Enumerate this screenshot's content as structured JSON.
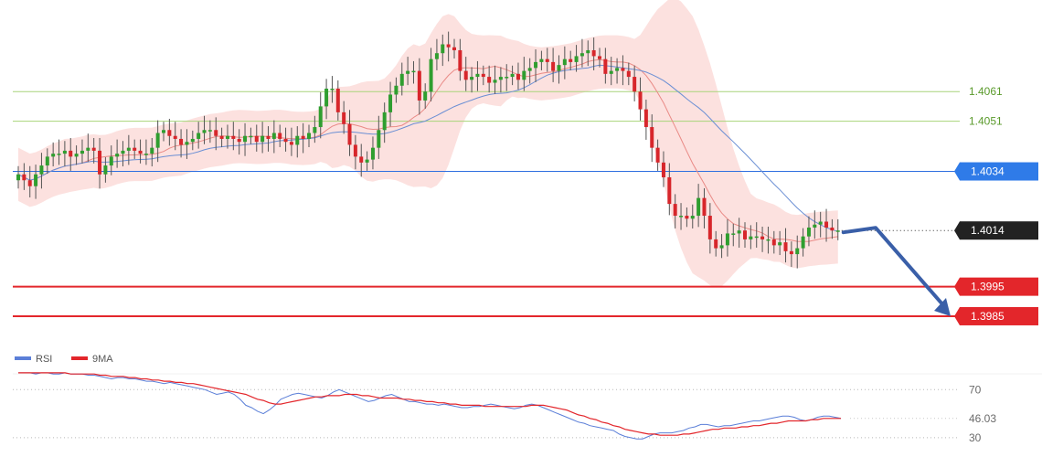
{
  "chart_data": [
    {
      "type": "candlestick",
      "title": "",
      "ylim": [
        1.3972,
        1.4092
      ],
      "grid": false,
      "legend": "none",
      "price_levels": [
        {
          "value": 1.4061,
          "label": "1.4061",
          "style": "resistance",
          "color": "#a8d47a",
          "text_color": "#5a9a2b",
          "tag": false
        },
        {
          "value": 1.4051,
          "label": "1.4051",
          "style": "resistance",
          "color": "#a8d47a",
          "text_color": "#5a9a2b",
          "tag": false
        },
        {
          "value": 1.4034,
          "label": "1.4034",
          "style": "pivot",
          "color": "#2f6fe0",
          "tag_color": "#2f7be8",
          "tag": true
        },
        {
          "value": 1.3995,
          "label": "1.3995",
          "style": "support",
          "color": "#e3262b",
          "tag_color": "#e3262b",
          "tag": true
        },
        {
          "value": 1.3985,
          "label": "1.3985",
          "style": "support",
          "color": "#e3262b",
          "tag_color": "#e3262b",
          "tag": true
        }
      ],
      "current_price": {
        "value": 1.4014,
        "label": "1.4014",
        "tag_color": "#222222"
      },
      "projection_arrow": {
        "from": 1.4014,
        "to": 1.3985,
        "color": "#3a5fa8"
      },
      "colors": {
        "up": "#2f9e2f",
        "down": "#d7262b",
        "wick": "#555555",
        "band_fill": "#f9c9c4",
        "ma_fast": "#e98a86",
        "ma_slow": "#6b8fd4"
      },
      "closes": [
        1.4033,
        1.4031,
        1.4029,
        1.4033,
        1.4036,
        1.4039,
        1.404,
        1.404,
        1.4041,
        1.4039,
        1.404,
        1.4041,
        1.4042,
        1.4041,
        1.4033,
        1.4036,
        1.4039,
        1.404,
        1.4041,
        1.4042,
        1.4041,
        1.404,
        1.404,
        1.4042,
        1.4047,
        1.4048,
        1.4046,
        1.4045,
        1.4043,
        1.4044,
        1.4045,
        1.4047,
        1.4048,
        1.4048,
        1.4046,
        1.4045,
        1.4046,
        1.4045,
        1.4044,
        1.4046,
        1.4046,
        1.4044,
        1.4046,
        1.4045,
        1.4047,
        1.4045,
        1.4044,
        1.4043,
        1.4046,
        1.4045,
        1.4047,
        1.4049,
        1.4056,
        1.4062,
        1.4062,
        1.4054,
        1.405,
        1.4043,
        1.4039,
        1.4037,
        1.4038,
        1.4042,
        1.4048,
        1.4054,
        1.406,
        1.4063,
        1.4067,
        1.4068,
        1.4068,
        1.4058,
        1.4061,
        1.4072,
        1.4074,
        1.4077,
        1.4076,
        1.4075,
        1.4068,
        1.4065,
        1.4066,
        1.4067,
        1.4066,
        1.4064,
        1.4065,
        1.4066,
        1.4066,
        1.4067,
        1.4065,
        1.4068,
        1.4069,
        1.4071,
        1.4072,
        1.4071,
        1.4068,
        1.407,
        1.4072,
        1.4071,
        1.4073,
        1.4074,
        1.4075,
        1.4073,
        1.4072,
        1.4067,
        1.4068,
        1.4069,
        1.4068,
        1.4066,
        1.4061,
        1.4055,
        1.4049,
        1.4042,
        1.4037,
        1.4032,
        1.4023,
        1.4019,
        1.4019,
        1.4018,
        1.4019,
        1.4025,
        1.4019,
        1.4011,
        1.4008,
        1.4009,
        1.4013,
        1.4013,
        1.4014,
        1.4011,
        1.4012,
        1.4012,
        1.4011,
        1.4011,
        1.4009,
        1.401,
        1.4007,
        1.4006,
        1.4008,
        1.4012,
        1.4015,
        1.4016,
        1.4017,
        1.4015,
        1.4014,
        1.4014
      ],
      "bands": {
        "upper_max": 1.4091,
        "lower_min": 1.3992
      },
      "x_axis_labels": []
    },
    {
      "type": "line",
      "title": "",
      "ylim": [
        20,
        90
      ],
      "legend": "top-left",
      "series": [
        {
          "name": "RSI",
          "color": "#5b7fd8"
        },
        {
          "name": "9MA",
          "color": "#e3262b"
        }
      ],
      "levels": [
        {
          "value": 70,
          "label": "70"
        },
        {
          "value": 30,
          "label": "30"
        }
      ],
      "current_value": {
        "value": 46.03,
        "label": "46.03"
      },
      "rsi": [
        84,
        84,
        84,
        83,
        84,
        84,
        83,
        83,
        84,
        83,
        83,
        83,
        82,
        82,
        81,
        80,
        79,
        80,
        80,
        79,
        79,
        78,
        77,
        77,
        76,
        75,
        76,
        75,
        74,
        73,
        72,
        71,
        70,
        68,
        66,
        67,
        68,
        66,
        62,
        57,
        55,
        52,
        50,
        53,
        57,
        62,
        64,
        66,
        67,
        66,
        65,
        64,
        63,
        65,
        68,
        70,
        68,
        66,
        64,
        62,
        60,
        61,
        63,
        65,
        66,
        64,
        62,
        60,
        60,
        59,
        58,
        58,
        57,
        58,
        57,
        56,
        55,
        55,
        56,
        56,
        57,
        58,
        57,
        56,
        55,
        54,
        55,
        57,
        58,
        57,
        55,
        53,
        51,
        49,
        47,
        45,
        43,
        42,
        40,
        39,
        38,
        37,
        36,
        33,
        31,
        30,
        29,
        29,
        31,
        33,
        34,
        34,
        34,
        35,
        36,
        38,
        39,
        41,
        41,
        40,
        39,
        40,
        40,
        41,
        42,
        43,
        44,
        44,
        45,
        46,
        47,
        48,
        48,
        47,
        45,
        44,
        45,
        47,
        48,
        48,
        47,
        46
      ],
      "ma9": [
        84,
        84,
        84,
        84,
        84,
        84,
        84,
        84,
        84,
        83,
        83,
        83,
        83,
        83,
        82,
        82,
        81,
        81,
        81,
        80,
        80,
        79,
        79,
        78,
        78,
        77,
        77,
        76,
        76,
        75,
        75,
        74,
        73,
        72,
        71,
        70,
        69,
        68,
        67,
        66,
        64,
        62,
        61,
        59,
        58,
        58,
        59,
        60,
        61,
        62,
        63,
        64,
        64,
        65,
        65,
        65,
        66,
        66,
        66,
        65,
        65,
        64,
        63,
        63,
        63,
        63,
        62,
        62,
        61,
        61,
        60,
        60,
        59,
        59,
        58,
        58,
        57,
        57,
        57,
        57,
        56,
        56,
        56,
        56,
        56,
        56,
        56,
        56,
        57,
        57,
        57,
        56,
        55,
        54,
        53,
        51,
        49,
        48,
        46,
        45,
        43,
        42,
        40,
        39,
        37,
        36,
        35,
        34,
        33,
        33,
        32,
        32,
        32,
        32,
        33,
        33,
        34,
        35,
        36,
        37,
        37,
        38,
        38,
        38,
        39,
        39,
        40,
        40,
        41,
        42,
        42,
        43,
        44,
        44,
        44,
        44,
        45,
        45,
        46,
        46,
        46,
        46
      ]
    }
  ]
}
